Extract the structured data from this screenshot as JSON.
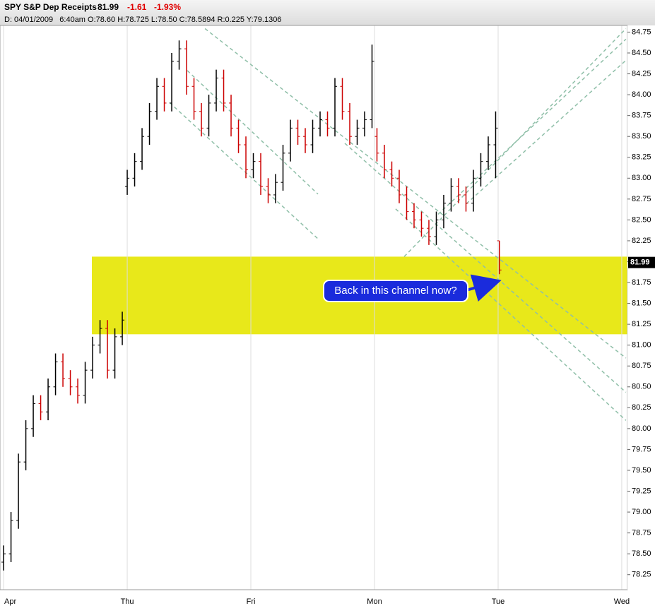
{
  "chart_data": {
    "type": "ohlc",
    "title": "SPY S&P Dep Receipts",
    "last_price": 81.99,
    "change": "-1.61",
    "change_pct": "-1.93%",
    "subtitle": "D: 04/01/2009   6:40am O:78.60 H:78.725 L:78.50 C:78.5894 R:0.225 Y:79.1306",
    "annotation": "Back in this channel now?",
    "xlim": [
      -0.029,
      5.046
    ],
    "ylim": [
      78.07,
      84.83
    ],
    "xticks": [
      {
        "value": 0,
        "label": "Apr"
      },
      {
        "value": 1,
        "label": "Thu"
      },
      {
        "value": 2,
        "label": "Fri"
      },
      {
        "value": 3,
        "label": "Mon"
      },
      {
        "value": 4,
        "label": "Tue"
      },
      {
        "value": 5,
        "label": "Wed"
      }
    ],
    "yticks": [
      78.25,
      {
        "value": 78.5,
        "label": "78.50"
      },
      78.75,
      {
        "value": 79,
        "label": "79.00"
      },
      79.25,
      {
        "value": 79.5,
        "label": "79.50"
      },
      79.75,
      {
        "value": 80,
        "label": "80.00"
      },
      80.25,
      {
        "value": 80.5,
        "label": "80.50"
      },
      80.75,
      {
        "value": 81,
        "label": "81.00"
      },
      81.25,
      {
        "value": 81.5,
        "label": "81.50"
      },
      81.75,
      {
        "value": 82,
        "label": "82.00"
      },
      82.25,
      {
        "value": 82.5,
        "label": "82.50"
      },
      82.75,
      {
        "value": 83,
        "label": "83.00"
      },
      83.25,
      {
        "value": 83.5,
        "label": "83.50"
      },
      83.75,
      {
        "value": 84,
        "label": "84.00"
      },
      84.25,
      {
        "value": 84.5,
        "label": "84.50"
      },
      84.75
    ],
    "up_color": "#000000",
    "down_color": "#cc0000",
    "grid": true,
    "x": [
      0,
      0.06,
      0.12,
      0.18,
      0.24,
      0.3,
      0.36,
      0.42,
      0.48,
      0.54,
      0.6,
      0.66,
      0.72,
      0.78,
      0.84,
      0.9,
      0.96,
      1,
      1.06,
      1.12,
      1.18,
      1.24,
      1.3,
      1.36,
      1.42,
      1.48,
      1.54,
      1.6,
      1.66,
      1.72,
      1.78,
      1.84,
      1.9,
      1.96,
      2.02,
      2.08,
      2.14,
      2.2,
      2.26,
      2.32,
      2.38,
      2.44,
      2.5,
      2.56,
      2.62,
      2.68,
      2.74,
      2.8,
      2.86,
      2.92,
      2.98,
      3.02,
      3.08,
      3.14,
      3.2,
      3.26,
      3.32,
      3.38,
      3.44,
      3.5,
      3.56,
      3.62,
      3.68,
      3.74,
      3.8,
      3.86,
      3.92,
      3.98,
      4.01
    ],
    "open": [
      78.4,
      78.5,
      78.9,
      79.6,
      80.0,
      80.3,
      80.2,
      80.5,
      80.8,
      80.6,
      80.5,
      80.4,
      80.7,
      81.0,
      81.2,
      80.7,
      81.1,
      82.9,
      83.0,
      83.2,
      83.5,
      83.8,
      84.1,
      83.9,
      84.4,
      84.55,
      84.1,
      83.8,
      83.6,
      83.9,
      84.2,
      83.9,
      83.6,
      83.4,
      83.1,
      83.2,
      82.9,
      82.8,
      82.95,
      83.3,
      83.6,
      83.5,
      83.4,
      83.6,
      83.7,
      83.6,
      84.1,
      83.8,
      83.5,
      83.6,
      83.7,
      83.5,
      83.3,
      83.1,
      83.0,
      82.8,
      82.6,
      82.5,
      82.4,
      82.3,
      82.5,
      82.7,
      82.9,
      82.8,
      82.7,
      83.0,
      83.2,
      83.4,
      82.25
    ],
    "high": [
      78.6,
      79.0,
      79.7,
      80.1,
      80.4,
      80.4,
      80.6,
      80.9,
      80.9,
      80.7,
      80.6,
      80.8,
      81.1,
      81.3,
      81.3,
      81.2,
      81.4,
      83.1,
      83.3,
      83.6,
      83.9,
      84.2,
      84.2,
      84.5,
      84.65,
      84.65,
      84.2,
      83.9,
      84.0,
      84.3,
      84.3,
      84.0,
      83.7,
      83.5,
      83.3,
      83.3,
      83.0,
      83.05,
      83.4,
      83.7,
      83.7,
      83.6,
      83.7,
      83.8,
      83.8,
      84.2,
      84.2,
      83.9,
      83.7,
      83.8,
      84.6,
      83.6,
      83.4,
      83.2,
      83.1,
      82.9,
      82.7,
      82.6,
      82.5,
      82.6,
      82.8,
      83.0,
      83.0,
      82.9,
      83.1,
      83.3,
      83.5,
      83.8,
      82.25
    ],
    "low": [
      78.3,
      78.4,
      78.8,
      79.5,
      79.9,
      80.1,
      80.1,
      80.4,
      80.5,
      80.4,
      80.3,
      80.3,
      80.6,
      80.9,
      80.6,
      80.6,
      81.0,
      82.8,
      82.9,
      83.1,
      83.4,
      83.7,
      83.8,
      83.8,
      84.3,
      84.0,
      83.7,
      83.5,
      83.5,
      83.8,
      83.8,
      83.5,
      83.3,
      83.0,
      83.0,
      82.8,
      82.7,
      82.7,
      82.85,
      83.2,
      83.4,
      83.3,
      83.3,
      83.5,
      83.5,
      83.5,
      83.7,
      83.4,
      83.4,
      83.5,
      83.6,
      83.2,
      83.0,
      82.9,
      82.7,
      82.5,
      82.4,
      82.3,
      82.2,
      82.2,
      82.4,
      82.6,
      82.7,
      82.6,
      82.6,
      82.9,
      83.1,
      83.0,
      81.85
    ],
    "close": [
      78.5,
      78.9,
      79.6,
      80.0,
      80.3,
      80.2,
      80.5,
      80.8,
      80.6,
      80.5,
      80.4,
      80.7,
      81.0,
      81.2,
      80.7,
      81.1,
      81.3,
      83.0,
      83.2,
      83.5,
      83.8,
      84.1,
      83.9,
      84.4,
      84.55,
      84.1,
      83.8,
      83.6,
      83.9,
      84.2,
      83.9,
      83.6,
      83.4,
      83.1,
      83.2,
      82.9,
      82.8,
      82.95,
      83.3,
      83.6,
      83.5,
      83.4,
      83.6,
      83.7,
      83.6,
      84.1,
      83.8,
      83.5,
      83.6,
      83.7,
      84.4,
      83.3,
      83.1,
      83.0,
      82.8,
      82.6,
      82.5,
      82.4,
      82.3,
      82.5,
      82.7,
      82.9,
      82.8,
      82.7,
      83.0,
      83.2,
      83.4,
      83.6,
      81.9
    ],
    "highlight": {
      "x": [
        0.714,
        5.046
      ],
      "y": [
        81.13,
        82.06
      ],
      "color": "#e8e81a"
    },
    "trendline_color": "#8fbfa8",
    "trendlines": [
      {
        "x": [
          1.343,
          2.543
        ],
        "y": [
          83.905,
          82.273
        ]
      },
      {
        "x": [
          1.486,
          2.543
        ],
        "y": [
          84.289,
          82.809
        ]
      },
      {
        "x": [
          1.629,
          5.034
        ],
        "y": [
          84.792,
          80.845
        ]
      },
      {
        "x": [
          2.76,
          5.034
        ],
        "y": [
          83.418,
          80.435
        ]
      },
      {
        "x": [
          3.171,
          5.034
        ],
        "y": [
          82.632,
          80.098
        ]
      },
      {
        "x": [
          3.24,
          5.034
        ],
        "y": [
          82.06,
          84.792
        ]
      },
      {
        "x": [
          3.514,
          5.034
        ],
        "y": [
          82.567,
          84.666
        ]
      },
      {
        "x": [
          3.743,
          5.034
        ],
        "y": [
          82.694,
          84.412
        ]
      }
    ]
  }
}
